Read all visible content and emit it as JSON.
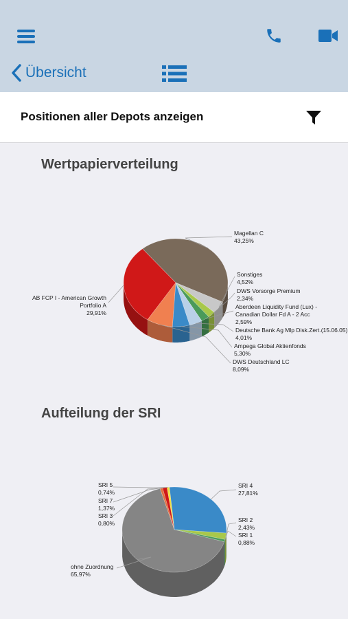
{
  "header": {
    "back_label": "Übersicht"
  },
  "filter_bar": {
    "title": "Positionen aller Depots anzeigen"
  },
  "sections": {
    "securities_title": "Wertpapierverteilung",
    "sri_title": "Aufteilung der SRI"
  },
  "colors": {
    "accent": "#1a70b8",
    "header_bg": "#c9d6e3"
  },
  "icons": [
    "menu-icon",
    "phone-icon",
    "video-icon",
    "chevron-left-icon",
    "list-icon",
    "filter-icon"
  ],
  "chart_data": [
    {
      "type": "pie",
      "title": "Wertpapierverteilung",
      "slices": [
        {
          "label": "Magellan C",
          "value_label": "43,25%",
          "value": 43.25,
          "color": "#7a6a5a"
        },
        {
          "label": "Sonstiges",
          "value_label": "4,52%",
          "value": 4.52,
          "color": "#c8c8c8"
        },
        {
          "label": "DWS Vorsorge Premium",
          "value_label": "2,34%",
          "value": 2.34,
          "color": "#a8c84a"
        },
        {
          "label": "Aberdeen Liquidity Fund (Lux) - Canadian Dollar Fd A - 2 Acc",
          "value_label": "2,59%",
          "value": 2.59,
          "color": "#4a9a5a"
        },
        {
          "label": "Deutsche Bank Ag Mlp Disk.Zert.(15.06.05)",
          "value_label": "4,01%",
          "value": 4.01,
          "color": "#b9d0e8"
        },
        {
          "label": "Ampega Global Aktienfonds",
          "value_label": "5,30%",
          "value": 5.3,
          "color": "#3a8ac8"
        },
        {
          "label": "DWS Deutschland LC",
          "value_label": "8,09%",
          "value": 8.09,
          "color": "#f08050"
        },
        {
          "label": "AB FCP I - American Growth Portfolio A",
          "value_label": "29,91%",
          "value": 29.91,
          "color": "#d01818"
        }
      ]
    },
    {
      "type": "pie",
      "title": "Aufteilung der SRI",
      "slices": [
        {
          "label": "SRI 4",
          "value_label": "27,81%",
          "value": 27.81,
          "color": "#3a8ac8"
        },
        {
          "label": "SRI 2",
          "value_label": "2,43%",
          "value": 2.43,
          "color": "#a8c84a"
        },
        {
          "label": "SRI 1",
          "value_label": "0,88%",
          "value": 0.88,
          "color": "#4a9a5a"
        },
        {
          "label": "ohne Zuordnung",
          "value_label": "65,97%",
          "value": 65.97,
          "color": "#858585"
        },
        {
          "label": "SRI 3",
          "value_label": "0,80%",
          "value": 0.8,
          "color": "#e07040"
        },
        {
          "label": "SRI 7",
          "value_label": "1,37%",
          "value": 1.37,
          "color": "#d01818"
        },
        {
          "label": "SRI 5",
          "value_label": "0,74%",
          "value": 0.74,
          "color": "#f0e040"
        }
      ]
    }
  ]
}
